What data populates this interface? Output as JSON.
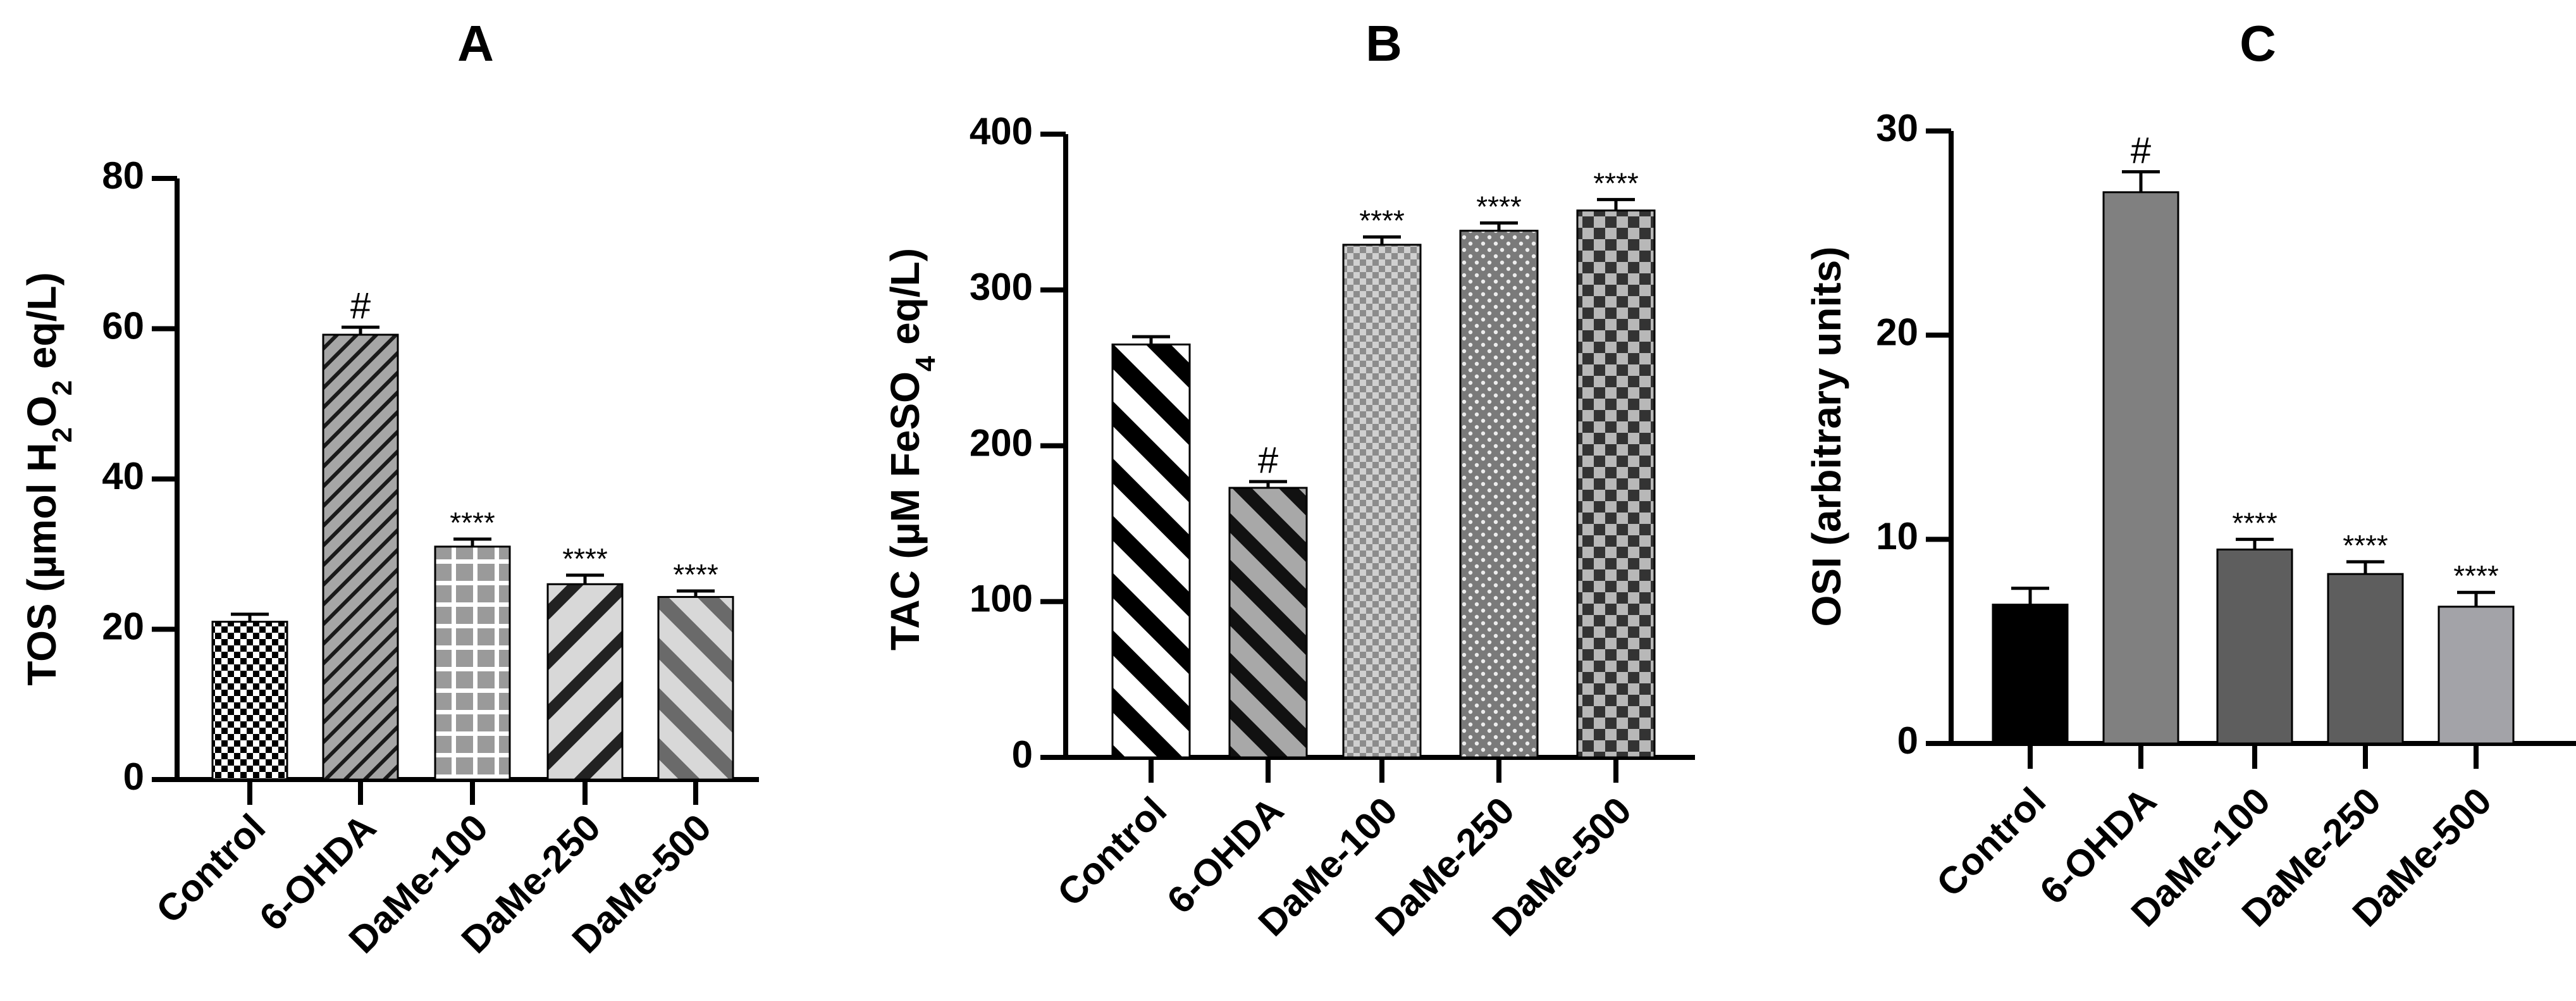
{
  "chart_data": [
    {
      "type": "bar",
      "panel_label": "A",
      "ylabel": "TOS (µmol H2O2 eq/L)",
      "ylabel_parts": [
        "TOS (µmol H",
        "2",
        "O",
        "2",
        " eq/L)"
      ],
      "ylim": [
        0,
        80
      ],
      "yticks": [
        "0",
        "20",
        "40",
        "60",
        "80"
      ],
      "categories": [
        "Control",
        "6-OHDA",
        "DaMe-100",
        "DaMe-250",
        "DaMe-500"
      ],
      "values": [
        21,
        59.2,
        31,
        26,
        24.3
      ],
      "errors": [
        1.0,
        1.0,
        1.0,
        1.2,
        0.8
      ],
      "annotations": [
        "",
        "#",
        "****",
        "****",
        "****"
      ],
      "patterns": [
        "checker-small",
        "diag-fine",
        "grid",
        "diag-wide",
        "diag-wide-dark"
      ]
    },
    {
      "type": "bar",
      "panel_label": "B",
      "ylabel": "TAC (µM FeSO4 eq/L)",
      "ylabel_parts": [
        "TAC (µM FeSO",
        "4",
        " eq/L)"
      ],
      "ylim": [
        0,
        400
      ],
      "yticks": [
        "0",
        "100",
        "200",
        "300",
        "400"
      ],
      "categories": [
        "Control",
        "6-OHDA",
        "DaMe-100",
        "DaMe-250",
        "DaMe-500"
      ],
      "values": [
        265,
        173,
        329,
        338,
        351
      ],
      "errors": [
        5,
        4,
        5,
        5,
        7
      ],
      "annotations": [
        "",
        "#",
        "****",
        "****",
        "****"
      ],
      "patterns": [
        "stripe-black",
        "stripe-gray",
        "checker-light",
        "dots",
        "checker-dark"
      ]
    },
    {
      "type": "bar",
      "panel_label": "C",
      "ylabel": "OSI (arbitrary units)",
      "ylabel_parts": [
        "OSI (arbitrary units)"
      ],
      "ylim": [
        0,
        30
      ],
      "yticks": [
        "0",
        "10",
        "20",
        "30"
      ],
      "categories": [
        "Control",
        "6-OHDA",
        "DaMe-100",
        "DaMe-250",
        "DaMe-500"
      ],
      "values": [
        6.8,
        27,
        9.5,
        8.3,
        6.7
      ],
      "errors": [
        0.8,
        1.0,
        0.5,
        0.6,
        0.7
      ],
      "annotations": [
        "",
        "#",
        "****",
        "****",
        "****"
      ],
      "colors": [
        "#000000",
        "#808080",
        "#5e5e5e",
        "#5e5e5e",
        "#a3a3a8"
      ]
    }
  ]
}
